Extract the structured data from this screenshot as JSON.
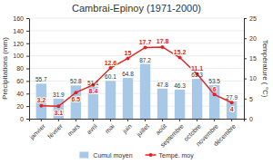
{
  "chart_data": {
    "type": "bar",
    "title": "Cambrai-Epinoy (1971-2000)",
    "categories": [
      "janvier",
      "février",
      "mars",
      "avril",
      "mai",
      "juin",
      "juillet",
      "août",
      "septembre",
      "octobre",
      "novembre",
      "décembre"
    ],
    "series": [
      {
        "name": "Cumul moyen",
        "type": "bar",
        "color": "#a8c8e8",
        "values": [
          55.7,
          31.9,
          52.8,
          51.1,
          60.1,
          64.8,
          87.2,
          47.8,
          46.3,
          63.3,
          53.5,
          27.9
        ]
      },
      {
        "name": "Tempé. moy",
        "type": "line",
        "axis": "y2",
        "color": "#e82020",
        "marker": "circle",
        "values": [
          3.2,
          3.1,
          6.5,
          8.4,
          12.6,
          15,
          17.7,
          17.8,
          15.2,
          11.1,
          6,
          4
        ]
      }
    ],
    "ylabel": "Précipitations (mm)",
    "y2label": "Température ( °C)",
    "ylim": [
      0,
      160
    ],
    "yticks": [
      0,
      20,
      40,
      60,
      80,
      100,
      120,
      140,
      160
    ],
    "y2lim": [
      0,
      25
    ],
    "y2ticks": [
      0,
      5,
      10,
      15,
      20,
      25
    ],
    "grid": true,
    "legend": "bottom",
    "data_labels": true
  }
}
